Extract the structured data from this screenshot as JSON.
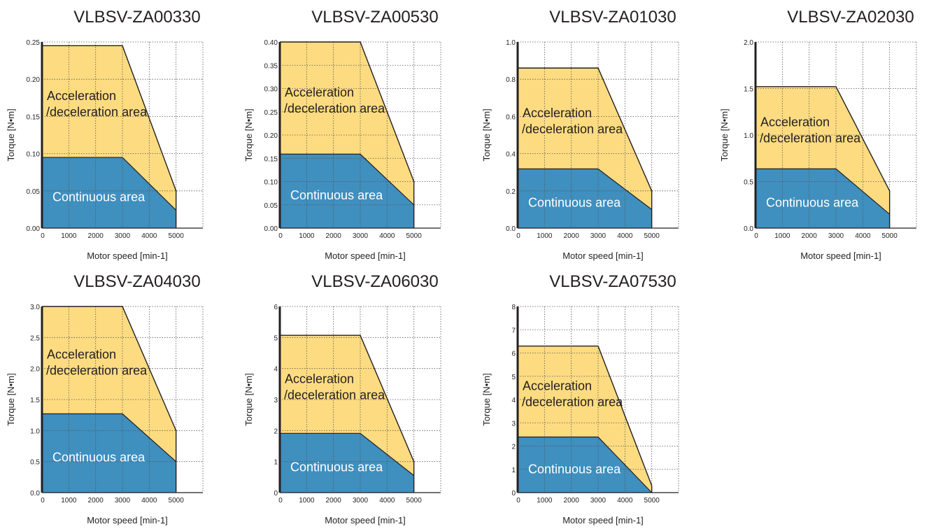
{
  "chart_data": [
    {
      "type": "area",
      "title": "VLBSV-ZA00330",
      "xlabel": "Motor speed [min-1]",
      "ylabel": "Torque [N•m]",
      "xlim": [
        0,
        6000
      ],
      "ylim": [
        0,
        0.25
      ],
      "x_ticks": [
        "0",
        "1000",
        "2000",
        "3000",
        "4000",
        "5000"
      ],
      "y_ticks": [
        "0.00",
        "0.05",
        "0.10",
        "0.15",
        "0.20",
        "0.25"
      ],
      "grid": true,
      "series": [
        {
          "name": "Continuous area",
          "x": [
            0,
            3000,
            5000
          ],
          "y": [
            0.095,
            0.095,
            0.024
          ]
        },
        {
          "name": "Acceleration /deceleration area",
          "x": [
            0,
            3000,
            5000
          ],
          "y": [
            0.245,
            0.245,
            0.05
          ]
        }
      ]
    },
    {
      "type": "area",
      "title": "VLBSV-ZA00530",
      "xlabel": "Motor speed [min-1]",
      "ylabel": "Torque [N•m]",
      "xlim": [
        0,
        6000
      ],
      "ylim": [
        0,
        0.4
      ],
      "x_ticks": [
        "0",
        "1000",
        "2000",
        "3000",
        "4000",
        "5000"
      ],
      "y_ticks": [
        "0.00",
        "0.05",
        "0.10",
        "0.15",
        "0.20",
        "0.25",
        "0.30",
        "0.35",
        "0.40"
      ],
      "grid": true,
      "series": [
        {
          "name": "Continuous area",
          "x": [
            0,
            3000,
            5000
          ],
          "y": [
            0.159,
            0.159,
            0.05
          ]
        },
        {
          "name": "Acceleration /deceleration area",
          "x": [
            0,
            3000,
            5000
          ],
          "y": [
            0.4,
            0.4,
            0.1
          ]
        }
      ]
    },
    {
      "type": "area",
      "title": "VLBSV-ZA01030",
      "xlabel": "Motor speed [min-1]",
      "ylabel": "Torque [N•m]",
      "xlim": [
        0,
        6000
      ],
      "ylim": [
        0,
        1.0
      ],
      "x_ticks": [
        "0",
        "1000",
        "2000",
        "3000",
        "4000",
        "5000"
      ],
      "y_ticks": [
        "0.0",
        "0.2",
        "0.4",
        "0.6",
        "0.8",
        "1.0"
      ],
      "grid": true,
      "series": [
        {
          "name": "Continuous area",
          "x": [
            0,
            3000,
            5000
          ],
          "y": [
            0.318,
            0.318,
            0.1
          ]
        },
        {
          "name": "Acceleration /deceleration area",
          "x": [
            0,
            3000,
            5000
          ],
          "y": [
            0.86,
            0.86,
            0.2
          ]
        }
      ]
    },
    {
      "type": "area",
      "title": "VLBSV-ZA02030",
      "xlabel": "Motor speed [min-1]",
      "ylabel": "Torque [N•m]",
      "xlim": [
        0,
        6000
      ],
      "ylim": [
        0,
        2.0
      ],
      "x_ticks": [
        "0",
        "1000",
        "2000",
        "3000",
        "4000",
        "5000"
      ],
      "y_ticks": [
        "0.0",
        "0.5",
        "1.0",
        "1.5",
        "2.0"
      ],
      "grid": true,
      "series": [
        {
          "name": "Continuous area",
          "x": [
            0,
            3000,
            5000
          ],
          "y": [
            0.637,
            0.637,
            0.15
          ]
        },
        {
          "name": "Acceleration /deceleration area",
          "x": [
            0,
            3000,
            5000
          ],
          "y": [
            1.52,
            1.52,
            0.4
          ]
        }
      ]
    },
    {
      "type": "area",
      "title": "VLBSV-ZA04030",
      "xlabel": "Motor speed [min-1]",
      "ylabel": "Torque [N•m]",
      "xlim": [
        0,
        6000
      ],
      "ylim": [
        0,
        3.0
      ],
      "x_ticks": [
        "0",
        "1000",
        "2000",
        "3000",
        "4000",
        "5000"
      ],
      "y_ticks": [
        "0.0",
        "0.5",
        "1.0",
        "1.5",
        "2.0",
        "2.5",
        "3.0"
      ],
      "grid": true,
      "series": [
        {
          "name": "Continuous area",
          "x": [
            0,
            3000,
            5000
          ],
          "y": [
            1.27,
            1.27,
            0.5
          ]
        },
        {
          "name": "Acceleration /deceleration area",
          "x": [
            0,
            3000,
            5000
          ],
          "y": [
            3.0,
            3.0,
            1.0
          ]
        }
      ]
    },
    {
      "type": "area",
      "title": "VLBSV-ZA06030",
      "xlabel": "Motor speed [min-1]",
      "ylabel": "Torque [N•m]",
      "xlim": [
        0,
        6000
      ],
      "ylim": [
        0,
        6
      ],
      "x_ticks": [
        "0",
        "1000",
        "2000",
        "3000",
        "4000",
        "5000"
      ],
      "y_ticks": [
        "0",
        "1",
        "2",
        "3",
        "4",
        "5",
        "6"
      ],
      "grid": true,
      "series": [
        {
          "name": "Continuous area",
          "x": [
            0,
            3000,
            5000
          ],
          "y": [
            1.91,
            1.91,
            0.55
          ]
        },
        {
          "name": "Acceleration /deceleration area",
          "x": [
            0,
            3000,
            5000
          ],
          "y": [
            5.07,
            5.07,
            1.0
          ]
        }
      ]
    },
    {
      "type": "area",
      "title": "VLBSV-ZA07530",
      "xlabel": "Motor speed [min-1]",
      "ylabel": "Torque [N•m]",
      "xlim": [
        0,
        6000
      ],
      "ylim": [
        0,
        8
      ],
      "x_ticks": [
        "0",
        "1000",
        "2000",
        "3000",
        "4000",
        "5000"
      ],
      "y_ticks": [
        "0",
        "1",
        "2",
        "3",
        "4",
        "5",
        "6",
        "7",
        "8"
      ],
      "grid": true,
      "series": [
        {
          "name": "Continuous area",
          "x": [
            0,
            3000,
            5000
          ],
          "y": [
            2.39,
            2.39,
            0.0
          ]
        },
        {
          "name": "Acceleration /deceleration area",
          "x": [
            0,
            3000,
            5000
          ],
          "y": [
            6.3,
            6.3,
            0.3
          ]
        }
      ]
    }
  ],
  "colors": {
    "accel_area": "#fddc81",
    "continuous_area": "#3f8fbf",
    "outline": "#231f20",
    "grid": "#555555",
    "continuous_label": "#ffffff",
    "accel_label": "#231f20"
  }
}
